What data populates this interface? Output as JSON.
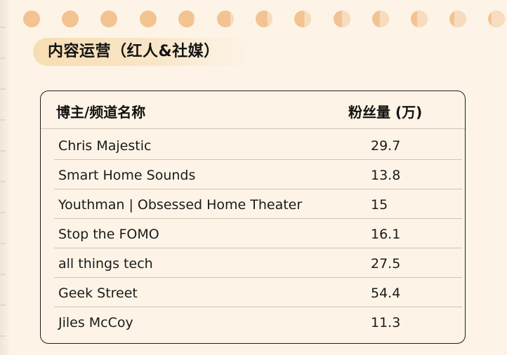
{
  "section": {
    "title": "内容运营（红人&社媒）"
  },
  "table": {
    "headers": {
      "name": "博主/频道名称",
      "fans": "粉丝量 (万)"
    },
    "rows": [
      {
        "name": "Chris Majestic",
        "fans": "29.7"
      },
      {
        "name": "Smart Home Sounds",
        "fans": "13.8"
      },
      {
        "name": "Youthman | Obsessed Home Theater",
        "fans": "15"
      },
      {
        "name": "Stop the FOMO",
        "fans": "16.1"
      },
      {
        "name": "all things tech",
        "fans": "27.5"
      },
      {
        "name": "Geek Street",
        "fans": "54.4"
      },
      {
        "name": "Jiles McCoy",
        "fans": "11.3"
      }
    ]
  },
  "colors": {
    "background": "#fdf4e7",
    "hole_dark": "#f3c391",
    "hole_light": "#f8dcc0",
    "tab": "#f7ddb3",
    "border": "#1e1e1e",
    "row_divider": "#cfc4b5"
  },
  "decorations": {
    "binder_holes": [
      {
        "light_fraction": 0.0
      },
      {
        "light_fraction": 0.0
      },
      {
        "light_fraction": 0.0
      },
      {
        "light_fraction": 0.0
      },
      {
        "light_fraction": 0.1
      },
      {
        "light_fraction": 0.2
      },
      {
        "light_fraction": 0.3
      },
      {
        "light_fraction": 0.4
      },
      {
        "light_fraction": 0.5
      },
      {
        "light_fraction": 0.55
      },
      {
        "light_fraction": 0.62
      },
      {
        "light_fraction": 0.7
      },
      {
        "light_fraction": 0.8
      }
    ]
  }
}
